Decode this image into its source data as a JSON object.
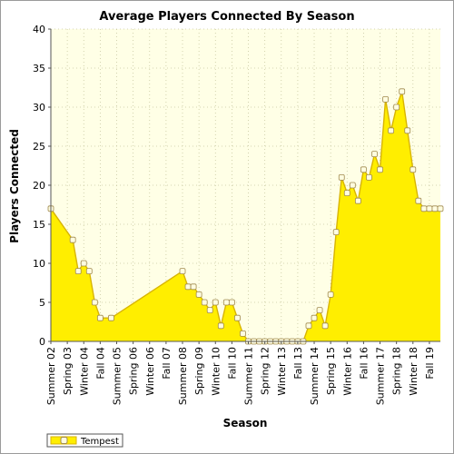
{
  "chart_data": {
    "type": "area",
    "title": "Average Players Connected By Season",
    "xlabel": "Season",
    "ylabel": "Players Connected",
    "ylim": [
      0,
      40
    ],
    "yticks": [
      0,
      5,
      10,
      15,
      20,
      25,
      30,
      35,
      40
    ],
    "grid": true,
    "legend_position": "bottom-left",
    "colors": {
      "fill": "#ffee00",
      "line": "#d8b400",
      "plot_bg": "#ffffe6",
      "grid": "#c8c8a0",
      "marker_fill": "#fffde0",
      "marker_stroke": "#a08a50"
    },
    "xtick_labels": [
      "Summer 02",
      "Spring 03",
      "Winter 04",
      "Fall 04",
      "Summer 05",
      "Spring 06",
      "Winter 06",
      "Fall 07",
      "Summer 08",
      "Spring 09",
      "Winter 10",
      "Fall 10",
      "Summer 11",
      "Spring 12",
      "Winter 13",
      "Fall 13",
      "Summer 14",
      "Spring 15",
      "Winter 16",
      "Fall 16",
      "Summer 17",
      "Spring 18",
      "Winter 18",
      "Fall 19"
    ],
    "series": [
      {
        "name": "Tempest",
        "points": [
          {
            "x": 0,
            "y": 17
          },
          {
            "x": 4,
            "y": 13
          },
          {
            "x": 5,
            "y": 9
          },
          {
            "x": 6,
            "y": 10
          },
          {
            "x": 7,
            "y": 9
          },
          {
            "x": 8,
            "y": 5
          },
          {
            "x": 9,
            "y": 3
          },
          {
            "x": 11,
            "y": 3
          },
          {
            "x": 24,
            "y": 9
          },
          {
            "x": 25,
            "y": 7
          },
          {
            "x": 26,
            "y": 7
          },
          {
            "x": 27,
            "y": 6
          },
          {
            "x": 28,
            "y": 5
          },
          {
            "x": 29,
            "y": 4
          },
          {
            "x": 30,
            "y": 5
          },
          {
            "x": 31,
            "y": 2
          },
          {
            "x": 32,
            "y": 5
          },
          {
            "x": 33,
            "y": 5
          },
          {
            "x": 34,
            "y": 3
          },
          {
            "x": 35,
            "y": 1
          },
          {
            "x": 36,
            "y": 0
          },
          {
            "x": 37,
            "y": 0
          },
          {
            "x": 38,
            "y": 0
          },
          {
            "x": 39,
            "y": 0
          },
          {
            "x": 40,
            "y": 0
          },
          {
            "x": 41,
            "y": 0
          },
          {
            "x": 42,
            "y": 0
          },
          {
            "x": 43,
            "y": 0
          },
          {
            "x": 44,
            "y": 0
          },
          {
            "x": 45,
            "y": 0
          },
          {
            "x": 46,
            "y": 0
          },
          {
            "x": 47,
            "y": 2
          },
          {
            "x": 48,
            "y": 3
          },
          {
            "x": 49,
            "y": 4
          },
          {
            "x": 50,
            "y": 2
          },
          {
            "x": 51,
            "y": 6
          },
          {
            "x": 52,
            "y": 14
          },
          {
            "x": 53,
            "y": 21
          },
          {
            "x": 54,
            "y": 19
          },
          {
            "x": 55,
            "y": 20
          },
          {
            "x": 56,
            "y": 18
          },
          {
            "x": 57,
            "y": 22
          },
          {
            "x": 58,
            "y": 21
          },
          {
            "x": 59,
            "y": 24
          },
          {
            "x": 60,
            "y": 22
          },
          {
            "x": 61,
            "y": 31
          },
          {
            "x": 62,
            "y": 27
          },
          {
            "x": 63,
            "y": 30
          },
          {
            "x": 64,
            "y": 32
          },
          {
            "x": 65,
            "y": 27
          },
          {
            "x": 66,
            "y": 22
          },
          {
            "x": 67,
            "y": 18
          },
          {
            "x": 68,
            "y": 17
          },
          {
            "x": 69,
            "y": 17
          },
          {
            "x": 70,
            "y": 17
          },
          {
            "x": 71,
            "y": 17
          }
        ]
      }
    ],
    "x_count": 71,
    "xtick_positions": [
      0,
      3,
      6,
      9,
      12,
      15,
      18,
      21,
      24,
      27,
      30,
      33,
      36,
      39,
      42,
      45,
      48,
      51,
      54,
      57,
      60,
      63,
      66,
      69
    ]
  }
}
